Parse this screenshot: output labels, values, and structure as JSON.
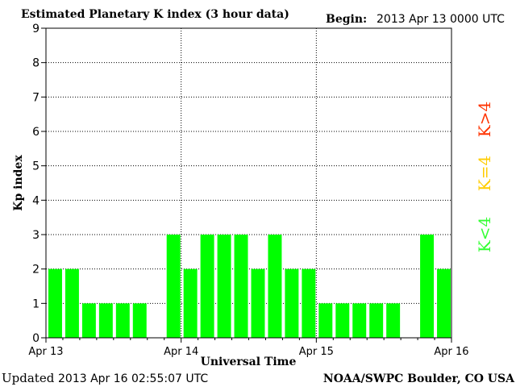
{
  "header": {
    "title": "Estimated Planetary K index (3 hour data)",
    "begin_label": "Begin:",
    "begin_value": "2013 Apr 13 0000 UTC"
  },
  "footer": {
    "updated_label": "Updated",
    "updated_value": "2013 Apr 16 02:55:07 UTC",
    "source": "NOAA/SWPC Boulder, CO USA"
  },
  "legend": [
    {
      "label": "K>4",
      "color": "#ff3300"
    },
    {
      "label": "K=4",
      "color": "#ffcc00"
    },
    {
      "label": "K<4",
      "color": "#33ff33"
    }
  ],
  "chart_data": {
    "type": "bar",
    "title": "Estimated Planetary K index (3 hour data)",
    "xlabel": "Universal Time",
    "ylabel": "Kp index",
    "ylim": [
      0,
      9
    ],
    "yticks": [
      0,
      1,
      2,
      3,
      4,
      5,
      6,
      7,
      8,
      9
    ],
    "x_tick_labels": [
      "Apr 13",
      "Apr 14",
      "Apr 15",
      "Apr 16"
    ],
    "grid": true,
    "bar_color": "#00ff00",
    "series": [
      {
        "values": [
          2,
          2,
          1,
          1,
          1,
          1,
          0,
          3,
          2,
          3,
          3,
          3,
          2,
          3,
          2,
          2,
          1,
          1,
          1,
          1,
          1,
          0,
          3,
          2
        ]
      }
    ]
  }
}
